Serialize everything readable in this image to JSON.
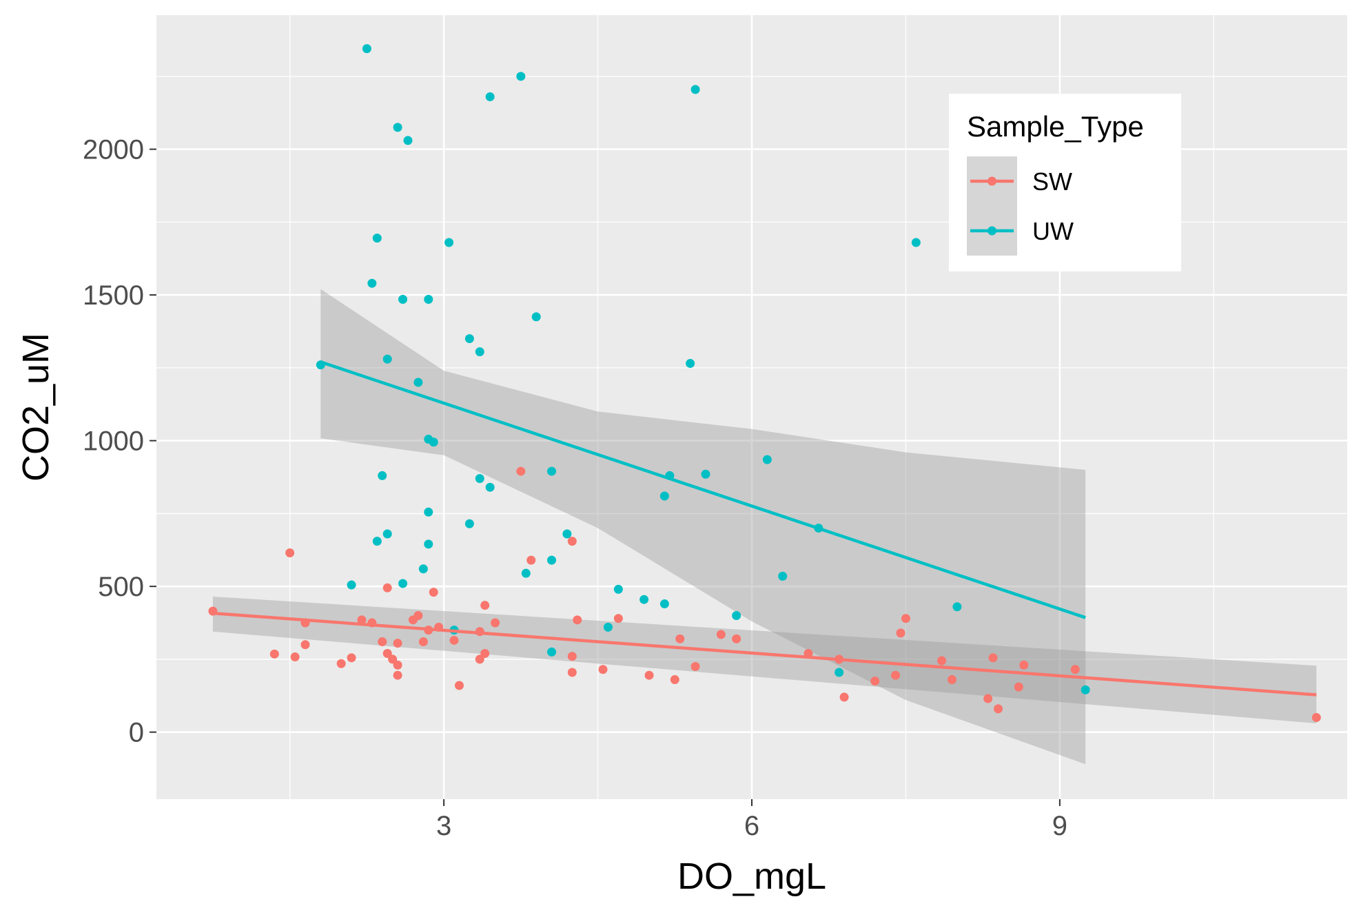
{
  "chart_data": {
    "type": "scatter",
    "xlabel": "DO_mgL",
    "ylabel": "CO2_uM",
    "xlim": [
      0.2,
      11.8
    ],
    "ylim": [
      -230,
      2460
    ],
    "x_major_ticks": [
      3,
      6,
      9
    ],
    "x_tick_labels": [
      "3",
      "6",
      "9"
    ],
    "x_minor_ticks": [
      1.5,
      4.5,
      7.5,
      10.5
    ],
    "y_major_ticks": [
      0,
      500,
      1000,
      1500,
      2000
    ],
    "y_tick_labels": [
      "0",
      "500",
      "1000",
      "1500",
      "2000"
    ],
    "y_minor_ticks": [
      250,
      750,
      1250,
      1750,
      2250
    ],
    "grid": true,
    "panel_background": "#ebebeb",
    "legend": {
      "title": "Sample_Type",
      "placement": "top-right",
      "entries": [
        "SW",
        "UW"
      ]
    },
    "series": [
      {
        "name": "SW",
        "color": "#f8766d",
        "points": [
          [
            0.75,
            415
          ],
          [
            1.35,
            268
          ],
          [
            1.5,
            615
          ],
          [
            1.55,
            258
          ],
          [
            1.65,
            300
          ],
          [
            1.65,
            375
          ],
          [
            2.0,
            235
          ],
          [
            2.1,
            255
          ],
          [
            2.2,
            385
          ],
          [
            2.3,
            375
          ],
          [
            2.4,
            310
          ],
          [
            2.45,
            495
          ],
          [
            2.45,
            270
          ],
          [
            2.5,
            250
          ],
          [
            2.55,
            305
          ],
          [
            2.55,
            230
          ],
          [
            2.55,
            195
          ],
          [
            2.7,
            385
          ],
          [
            2.75,
            400
          ],
          [
            2.8,
            310
          ],
          [
            2.85,
            350
          ],
          [
            2.9,
            480
          ],
          [
            2.95,
            360
          ],
          [
            3.1,
            315
          ],
          [
            3.15,
            160
          ],
          [
            3.35,
            345
          ],
          [
            3.35,
            250
          ],
          [
            3.4,
            270
          ],
          [
            3.4,
            435
          ],
          [
            3.5,
            375
          ],
          [
            3.75,
            895
          ],
          [
            3.85,
            590
          ],
          [
            4.25,
            655
          ],
          [
            4.25,
            260
          ],
          [
            4.25,
            205
          ],
          [
            4.3,
            385
          ],
          [
            4.55,
            215
          ],
          [
            4.7,
            390
          ],
          [
            5.0,
            195
          ],
          [
            5.25,
            180
          ],
          [
            5.3,
            320
          ],
          [
            5.45,
            225
          ],
          [
            5.7,
            335
          ],
          [
            5.85,
            320
          ],
          [
            6.55,
            270
          ],
          [
            6.85,
            250
          ],
          [
            6.9,
            120
          ],
          [
            7.2,
            175
          ],
          [
            7.4,
            195
          ],
          [
            7.45,
            340
          ],
          [
            7.5,
            390
          ],
          [
            7.85,
            245
          ],
          [
            7.95,
            180
          ],
          [
            8.3,
            115
          ],
          [
            8.35,
            255
          ],
          [
            8.4,
            80
          ],
          [
            8.6,
            155
          ],
          [
            8.65,
            230
          ],
          [
            9.15,
            215
          ],
          [
            11.5,
            50
          ]
        ],
        "trend": {
          "x": [
            0.75,
            11.5
          ],
          "y": [
            408,
            128
          ]
        },
        "ci_band": {
          "x": [
            0.75,
            11.5
          ],
          "lower": [
            345,
            30
          ],
          "upper": [
            465,
            228
          ]
        }
      },
      {
        "name": "UW",
        "color": "#00bfc4",
        "points": [
          [
            2.25,
            2345
          ],
          [
            3.75,
            2250
          ],
          [
            3.45,
            2180
          ],
          [
            5.45,
            2205
          ],
          [
            2.55,
            2075
          ],
          [
            2.65,
            2030
          ],
          [
            2.35,
            1695
          ],
          [
            3.05,
            1680
          ],
          [
            7.6,
            1680
          ],
          [
            2.3,
            1540
          ],
          [
            2.6,
            1485
          ],
          [
            2.85,
            1485
          ],
          [
            3.9,
            1425
          ],
          [
            3.25,
            1350
          ],
          [
            3.35,
            1305
          ],
          [
            2.45,
            1280
          ],
          [
            5.4,
            1265
          ],
          [
            1.8,
            1260
          ],
          [
            2.75,
            1200
          ],
          [
            2.85,
            1005
          ],
          [
            2.9,
            995
          ],
          [
            6.15,
            935
          ],
          [
            2.4,
            880
          ],
          [
            3.35,
            870
          ],
          [
            4.05,
            895
          ],
          [
            5.2,
            880
          ],
          [
            5.55,
            885
          ],
          [
            3.45,
            840
          ],
          [
            5.15,
            810
          ],
          [
            2.85,
            755
          ],
          [
            3.25,
            715
          ],
          [
            6.65,
            700
          ],
          [
            2.45,
            680
          ],
          [
            4.2,
            680
          ],
          [
            2.35,
            655
          ],
          [
            2.85,
            645
          ],
          [
            3.8,
            545
          ],
          [
            4.05,
            590
          ],
          [
            2.8,
            560
          ],
          [
            6.3,
            535
          ],
          [
            2.1,
            505
          ],
          [
            2.6,
            510
          ],
          [
            4.7,
            490
          ],
          [
            4.95,
            455
          ],
          [
            5.15,
            440
          ],
          [
            8.0,
            430
          ],
          [
            5.85,
            400
          ],
          [
            4.6,
            360
          ],
          [
            3.1,
            350
          ],
          [
            4.05,
            275
          ],
          [
            6.85,
            205
          ],
          [
            9.25,
            145
          ]
        ],
        "trend": {
          "x": [
            1.8,
            9.25
          ],
          "y": [
            1270,
            393
          ]
        },
        "ci_band": {
          "x": [
            1.8,
            3.0,
            4.5,
            6.0,
            7.5,
            9.25
          ],
          "lower": [
            1008,
            950,
            700,
            380,
            110,
            -110
          ],
          "upper": [
            1520,
            1240,
            1100,
            1040,
            960,
            900
          ]
        }
      }
    ]
  }
}
